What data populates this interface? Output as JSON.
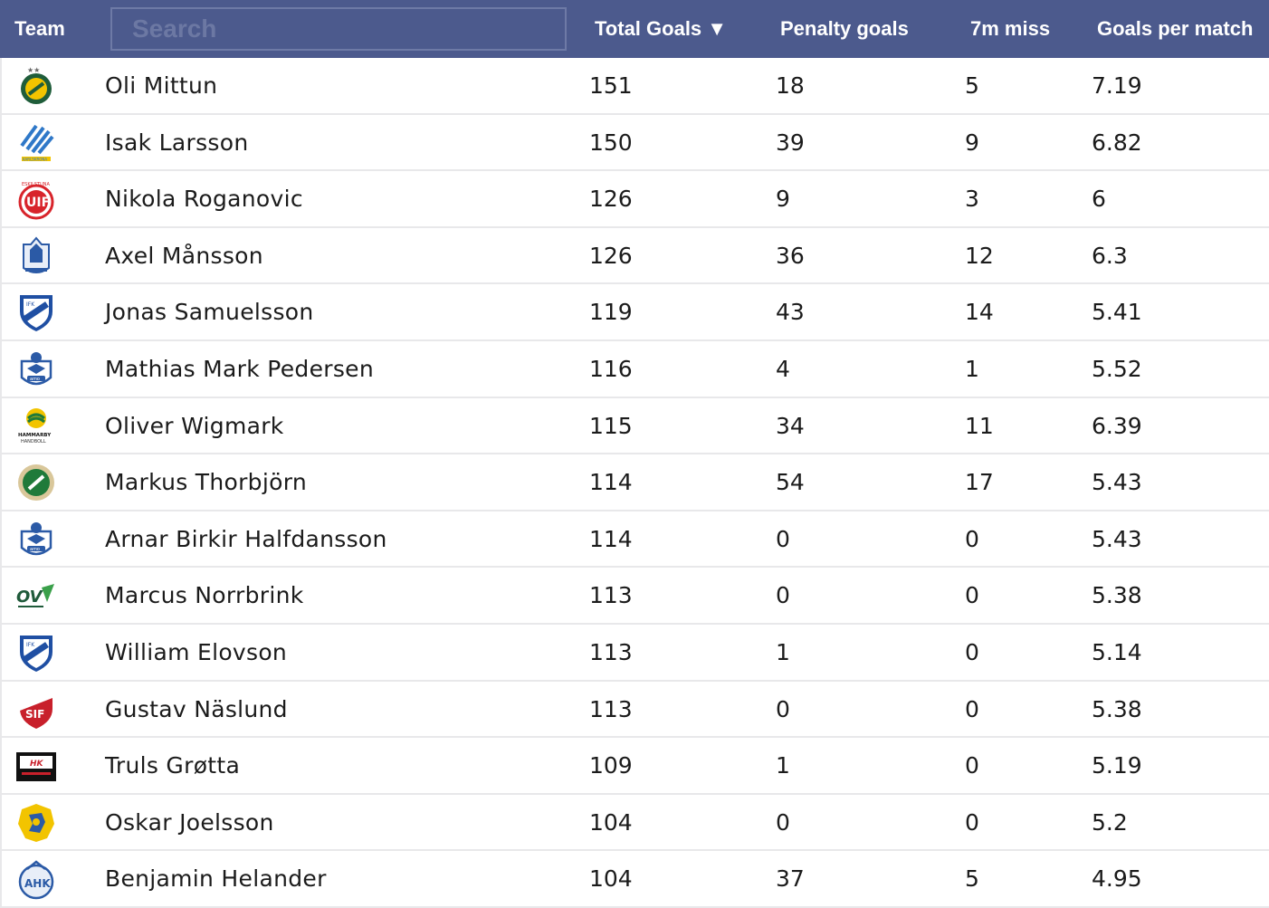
{
  "header": {
    "team": "Team",
    "search_placeholder": "Search",
    "total_goals": "Total Goals ▼",
    "penalty_goals": "Penalty goals",
    "miss_7m": "7m miss",
    "goals_per_match": "Goals per match"
  },
  "rows": [
    {
      "name": "Oli Mittun",
      "total": "151",
      "penalty": "18",
      "miss": "5",
      "gpm": "7.19",
      "logo": "club-crest-yellow-green"
    },
    {
      "name": "Isak Larsson",
      "total": "150",
      "penalty": "39",
      "miss": "9",
      "gpm": "6.82",
      "logo": "karlskrona-stripes"
    },
    {
      "name": "Nikola Roganovic",
      "total": "126",
      "penalty": "9",
      "miss": "3",
      "gpm": "6",
      "logo": "eskilstuna-guif"
    },
    {
      "name": "Axel Månsson",
      "total": "126",
      "penalty": "36",
      "miss": "12",
      "gpm": "6.3",
      "logo": "blue-crest"
    },
    {
      "name": "Jonas Samuelsson",
      "total": "119",
      "penalty": "43",
      "miss": "14",
      "gpm": "5.41",
      "logo": "ifk-skovde-shield"
    },
    {
      "name": "Mathias Mark Pedersen",
      "total": "116",
      "penalty": "4",
      "miss": "1",
      "gpm": "5.52",
      "logo": "amo-crest"
    },
    {
      "name": "Oliver Wigmark",
      "total": "115",
      "penalty": "34",
      "miss": "11",
      "gpm": "6.39",
      "logo": "hammarby-handboll"
    },
    {
      "name": "Markus Thorbjörn",
      "total": "114",
      "penalty": "54",
      "miss": "17",
      "gpm": "5.43",
      "logo": "green-round-crest"
    },
    {
      "name": "Arnar Birkir Halfdansson",
      "total": "114",
      "penalty": "0",
      "miss": "0",
      "gpm": "5.43",
      "logo": "amo-crest"
    },
    {
      "name": "Marcus Norrbrink",
      "total": "113",
      "penalty": "0",
      "miss": "0",
      "gpm": "5.38",
      "logo": "ov-wordmark"
    },
    {
      "name": "William Elovson",
      "total": "113",
      "penalty": "1",
      "miss": "0",
      "gpm": "5.14",
      "logo": "ifk-skovde-shield"
    },
    {
      "name": "Gustav Näslund",
      "total": "113",
      "penalty": "0",
      "miss": "0",
      "gpm": "5.38",
      "logo": "sif-shield"
    },
    {
      "name": "Truls Grøtta",
      "total": "109",
      "penalty": "1",
      "miss": "0",
      "gpm": "5.19",
      "logo": "hk-malmo-badge"
    },
    {
      "name": "Oskar Joelsson",
      "total": "104",
      "penalty": "0",
      "miss": "0",
      "gpm": "5.2",
      "logo": "yellow-blue-lion-crest"
    },
    {
      "name": "Benjamin Helander",
      "total": "104",
      "penalty": "37",
      "miss": "5",
      "gpm": "4.95",
      "logo": "ahk-crest"
    }
  ],
  "logo_text": {
    "karlskrona": "KARLSKRONA",
    "eskilstuna": "ESKILSTUNA",
    "amo": "amo",
    "hammarby1": "HAMMARBY",
    "hammarby2": "HANDBOLL",
    "ov": "OV",
    "sif": "SIF",
    "hk": "HK",
    "ahk": "AHK",
    "ifk": "IFK"
  },
  "colors": {
    "header_bg": "#4c5a8d",
    "header_text": "#ffffff",
    "row_border": "#e8e8ea",
    "text": "#1b1b1b"
  }
}
